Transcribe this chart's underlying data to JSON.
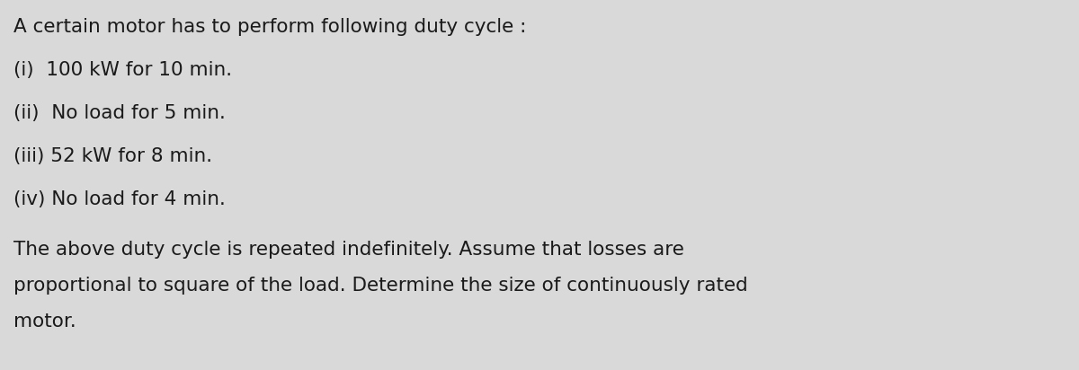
{
  "background_color": "#d9d9d9",
  "text_color": "#1a1a1a",
  "title_line": "A certain motor has to perform following duty cycle :",
  "items": [
    "(i)  100 kW for 10 min.",
    "(ii)  No load for 5 min.",
    "(iii) 52 kW for 8 min.",
    "(iv) No load for 4 min."
  ],
  "paragraph": "The above duty cycle is repeated indefinitely. Assume that losses are\nproportional to square of the load. Determine the size of continuously rated\nmotor.",
  "title_fontsize": 15.5,
  "item_fontsize": 15.5,
  "para_fontsize": 15.5,
  "font_family": "DejaVu Sans",
  "fig_width": 12.0,
  "fig_height": 4.12
}
